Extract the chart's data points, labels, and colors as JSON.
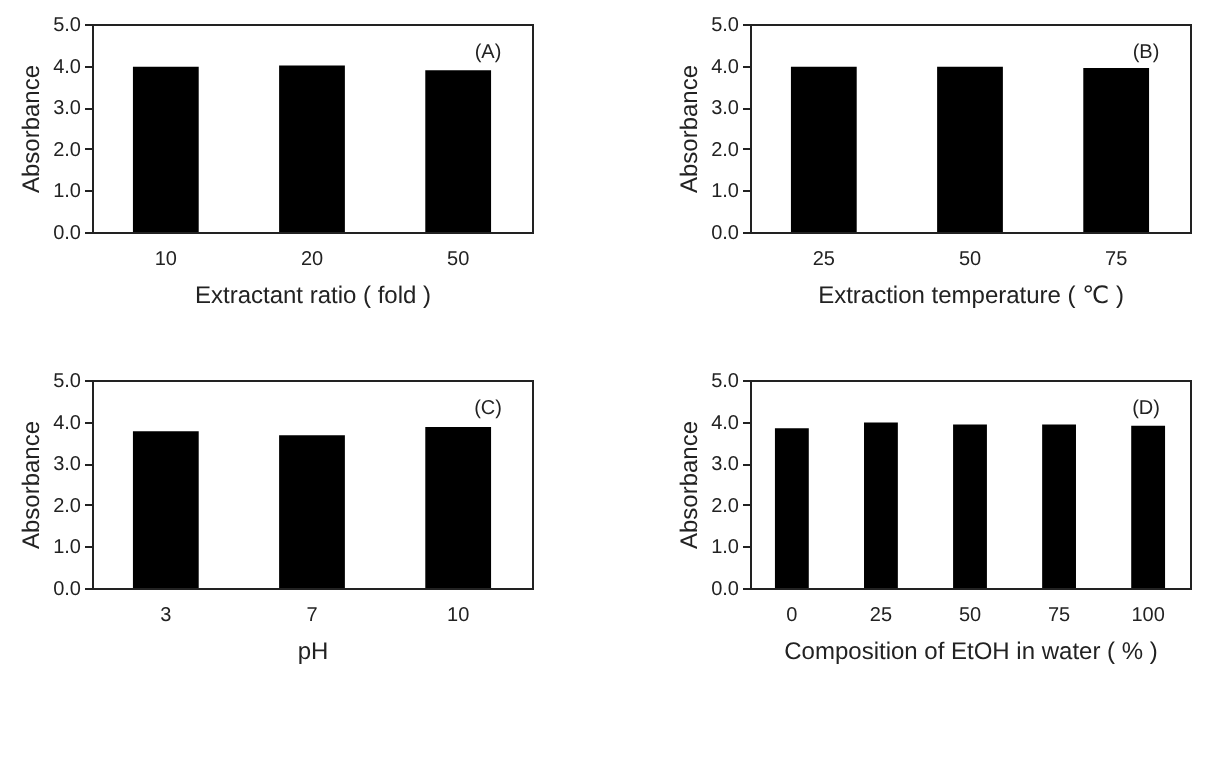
{
  "chart_data": [
    {
      "type": "bar",
      "xlabel": "Extractant  ratio ( fold )",
      "ylabel": "Absorbance",
      "categories": [
        "10",
        "20",
        "50"
      ],
      "series": [
        {
          "color": "#000000",
          "values": [
            3.97,
            4.0,
            3.89
          ]
        }
      ],
      "ylim": [
        0,
        5
      ],
      "yticks": [
        {
          "value": 0,
          "label": "0.0"
        },
        {
          "value": 1,
          "label": "1.0"
        },
        {
          "value": 2,
          "label": "2.0"
        },
        {
          "value": 3,
          "label": "3.0"
        },
        {
          "value": 4,
          "label": "4.0"
        },
        {
          "value": 5,
          "label": "5.0"
        }
      ],
      "annotations": [
        "(A)"
      ],
      "grid": false,
      "legend": false
    },
    {
      "type": "bar",
      "xlabel": "Extraction   temperature ( ℃ )",
      "ylabel": "Absorbance",
      "categories": [
        "25",
        "50",
        "75"
      ],
      "series": [
        {
          "color": "#000000",
          "values": [
            3.97,
            3.97,
            3.94
          ]
        }
      ],
      "ylim": [
        0,
        5
      ],
      "yticks": [
        {
          "value": 0,
          "label": "0.0"
        },
        {
          "value": 1,
          "label": "1.0"
        },
        {
          "value": 2,
          "label": "2.0"
        },
        {
          "value": 3,
          "label": "3.0"
        },
        {
          "value": 4,
          "label": "4.0"
        },
        {
          "value": 5,
          "label": "5.0"
        }
      ],
      "annotations": [
        "(B)"
      ],
      "grid": false,
      "legend": false
    },
    {
      "type": "bar",
      "xlabel": "pH",
      "ylabel": "Absorbance",
      "categories": [
        "3",
        "7",
        "10"
      ],
      "series": [
        {
          "color": "#000000",
          "values": [
            3.77,
            3.67,
            3.87
          ]
        }
      ],
      "ylim": [
        0,
        5
      ],
      "yticks": [
        {
          "value": 0,
          "label": "0.0"
        },
        {
          "value": 1,
          "label": "1.0"
        },
        {
          "value": 2,
          "label": "2.0"
        },
        {
          "value": 3,
          "label": "3.0"
        },
        {
          "value": 4,
          "label": "4.0"
        },
        {
          "value": 5,
          "label": "5.0"
        }
      ],
      "annotations": [
        "(C)"
      ],
      "grid": false,
      "legend": false
    },
    {
      "type": "bar",
      "xlabel": "Composition of EtOH in water ( % )",
      "ylabel": "Absorbance",
      "categories": [
        "0",
        "25",
        "50",
        "75",
        "100"
      ],
      "series": [
        {
          "color": "#000000",
          "values": [
            3.84,
            3.98,
            3.93,
            3.93,
            3.9
          ]
        }
      ],
      "ylim": [
        0,
        5
      ],
      "yticks": [
        {
          "value": 0,
          "label": "0.0"
        },
        {
          "value": 1,
          "label": "1.0"
        },
        {
          "value": 2,
          "label": "2.0"
        },
        {
          "value": 3,
          "label": "3.0"
        },
        {
          "value": 4,
          "label": "4.0"
        },
        {
          "value": 5,
          "label": "5.0"
        }
      ],
      "annotations": [
        "(D)"
      ],
      "grid": false,
      "legend": false
    }
  ]
}
